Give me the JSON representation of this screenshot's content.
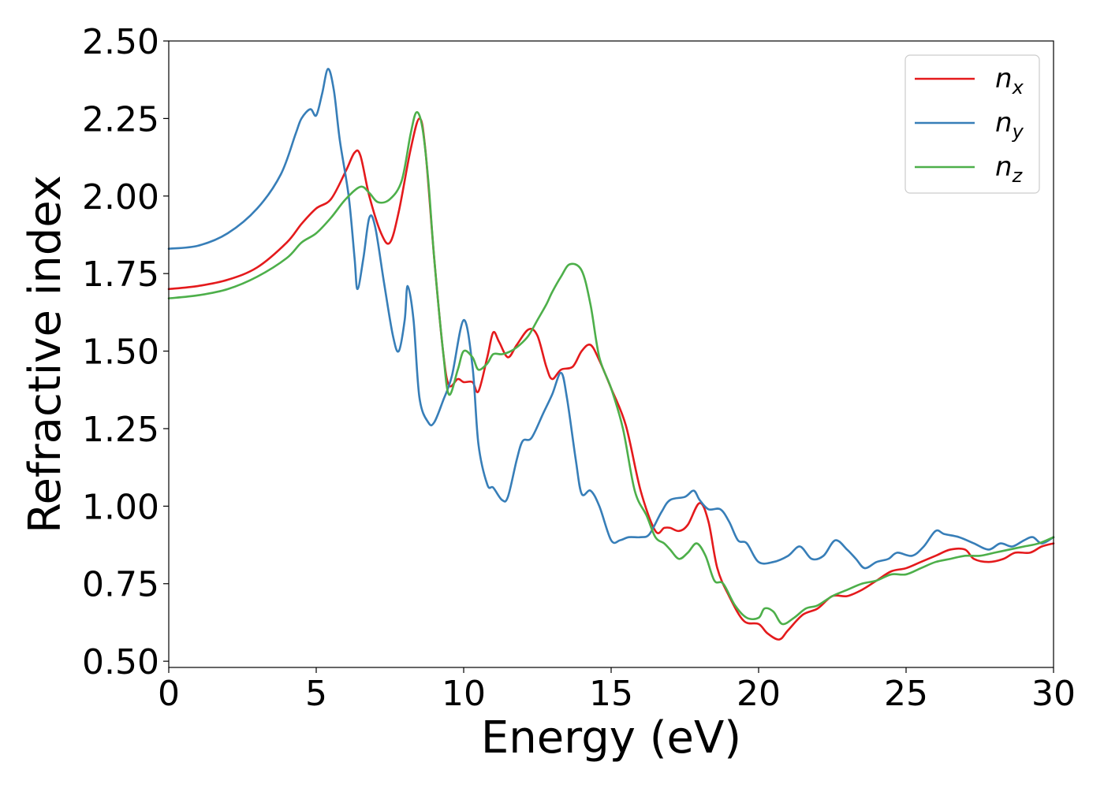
{
  "chart_data": {
    "type": "line",
    "title": "",
    "xlabel": "Energy (eV)",
    "ylabel": "Refractive index",
    "xlim": [
      0,
      30
    ],
    "ylim": [
      0.48,
      2.5
    ],
    "xticks": [
      0,
      5,
      10,
      15,
      20,
      25,
      30
    ],
    "xtick_labels": [
      "0",
      "5",
      "10",
      "15",
      "20",
      "25",
      "30"
    ],
    "yticks": [
      0.5,
      0.75,
      1.0,
      1.25,
      1.5,
      1.75,
      2.0,
      2.25,
      2.5
    ],
    "ytick_labels": [
      "0.50",
      "0.75",
      "1.00",
      "1.25",
      "1.50",
      "1.75",
      "2.00",
      "2.25",
      "2.50"
    ],
    "grid": false,
    "legend_position": "top-right",
    "series": [
      {
        "name": "n",
        "subscript": "x",
        "color": "#e41a1c",
        "points": [
          [
            0,
            1.7
          ],
          [
            1,
            1.71
          ],
          [
            2,
            1.73
          ],
          [
            3,
            1.77
          ],
          [
            4,
            1.85
          ],
          [
            4.5,
            1.91
          ],
          [
            5,
            1.96
          ],
          [
            5.5,
            1.99
          ],
          [
            6,
            2.08
          ],
          [
            6.3,
            2.14
          ],
          [
            6.5,
            2.13
          ],
          [
            6.8,
            2.0
          ],
          [
            7.2,
            1.88
          ],
          [
            7.5,
            1.85
          ],
          [
            7.8,
            1.95
          ],
          [
            8.2,
            2.15
          ],
          [
            8.5,
            2.25
          ],
          [
            8.7,
            2.15
          ],
          [
            9.0,
            1.8
          ],
          [
            9.3,
            1.5
          ],
          [
            9.5,
            1.39
          ],
          [
            9.8,
            1.41
          ],
          [
            10.0,
            1.4
          ],
          [
            10.3,
            1.4
          ],
          [
            10.5,
            1.37
          ],
          [
            10.8,
            1.48
          ],
          [
            11.0,
            1.56
          ],
          [
            11.2,
            1.53
          ],
          [
            11.5,
            1.48
          ],
          [
            11.8,
            1.52
          ],
          [
            12.2,
            1.57
          ],
          [
            12.5,
            1.55
          ],
          [
            12.8,
            1.45
          ],
          [
            13.0,
            1.41
          ],
          [
            13.3,
            1.44
          ],
          [
            13.7,
            1.45
          ],
          [
            14.0,
            1.5
          ],
          [
            14.3,
            1.52
          ],
          [
            14.6,
            1.47
          ],
          [
            15.0,
            1.38
          ],
          [
            15.5,
            1.26
          ],
          [
            16.0,
            1.05
          ],
          [
            16.5,
            0.92
          ],
          [
            16.8,
            0.93
          ],
          [
            17.0,
            0.93
          ],
          [
            17.3,
            0.92
          ],
          [
            17.6,
            0.94
          ],
          [
            18.0,
            1.01
          ],
          [
            18.3,
            0.95
          ],
          [
            18.6,
            0.8
          ],
          [
            19.0,
            0.71
          ],
          [
            19.5,
            0.63
          ],
          [
            20.0,
            0.62
          ],
          [
            20.3,
            0.59
          ],
          [
            20.7,
            0.57
          ],
          [
            21.0,
            0.6
          ],
          [
            21.5,
            0.65
          ],
          [
            22.0,
            0.67
          ],
          [
            22.5,
            0.71
          ],
          [
            23.0,
            0.71
          ],
          [
            23.5,
            0.73
          ],
          [
            24.0,
            0.76
          ],
          [
            24.5,
            0.79
          ],
          [
            25.0,
            0.8
          ],
          [
            25.5,
            0.82
          ],
          [
            26.0,
            0.84
          ],
          [
            26.5,
            0.86
          ],
          [
            27.0,
            0.86
          ],
          [
            27.3,
            0.83
          ],
          [
            27.8,
            0.82
          ],
          [
            28.3,
            0.83
          ],
          [
            28.7,
            0.85
          ],
          [
            29.2,
            0.85
          ],
          [
            29.6,
            0.87
          ],
          [
            30.0,
            0.88
          ]
        ]
      },
      {
        "name": "n",
        "subscript": "y",
        "color": "#377eb8",
        "points": [
          [
            0,
            1.83
          ],
          [
            1,
            1.84
          ],
          [
            2,
            1.88
          ],
          [
            3,
            1.96
          ],
          [
            3.8,
            2.07
          ],
          [
            4.3,
            2.2
          ],
          [
            4.5,
            2.25
          ],
          [
            4.8,
            2.28
          ],
          [
            5.0,
            2.26
          ],
          [
            5.2,
            2.33
          ],
          [
            5.4,
            2.41
          ],
          [
            5.6,
            2.34
          ],
          [
            5.8,
            2.18
          ],
          [
            6.1,
            2.0
          ],
          [
            6.3,
            1.8
          ],
          [
            6.4,
            1.7
          ],
          [
            6.6,
            1.8
          ],
          [
            6.8,
            1.93
          ],
          [
            7.0,
            1.9
          ],
          [
            7.3,
            1.72
          ],
          [
            7.6,
            1.55
          ],
          [
            7.8,
            1.5
          ],
          [
            8.0,
            1.6
          ],
          [
            8.1,
            1.71
          ],
          [
            8.3,
            1.6
          ],
          [
            8.5,
            1.35
          ],
          [
            8.8,
            1.27
          ],
          [
            9.0,
            1.27
          ],
          [
            9.3,
            1.34
          ],
          [
            9.6,
            1.42
          ],
          [
            10.0,
            1.6
          ],
          [
            10.3,
            1.45
          ],
          [
            10.5,
            1.2
          ],
          [
            10.8,
            1.07
          ],
          [
            11.0,
            1.06
          ],
          [
            11.3,
            1.02
          ],
          [
            11.5,
            1.03
          ],
          [
            11.8,
            1.15
          ],
          [
            12.0,
            1.21
          ],
          [
            12.3,
            1.22
          ],
          [
            12.7,
            1.3
          ],
          [
            13.0,
            1.36
          ],
          [
            13.3,
            1.43
          ],
          [
            13.5,
            1.35
          ],
          [
            13.8,
            1.15
          ],
          [
            14.0,
            1.04
          ],
          [
            14.3,
            1.05
          ],
          [
            14.6,
            1.0
          ],
          [
            15.0,
            0.89
          ],
          [
            15.3,
            0.89
          ],
          [
            15.6,
            0.9
          ],
          [
            16.0,
            0.9
          ],
          [
            16.3,
            0.91
          ],
          [
            16.7,
            0.98
          ],
          [
            17.0,
            1.02
          ],
          [
            17.5,
            1.03
          ],
          [
            17.8,
            1.05
          ],
          [
            18.0,
            1.02
          ],
          [
            18.3,
            0.99
          ],
          [
            18.7,
            0.99
          ],
          [
            19.0,
            0.95
          ],
          [
            19.3,
            0.89
          ],
          [
            19.6,
            0.88
          ],
          [
            20.0,
            0.82
          ],
          [
            20.5,
            0.82
          ],
          [
            21.0,
            0.84
          ],
          [
            21.4,
            0.87
          ],
          [
            21.8,
            0.83
          ],
          [
            22.2,
            0.84
          ],
          [
            22.6,
            0.89
          ],
          [
            23.0,
            0.86
          ],
          [
            23.3,
            0.83
          ],
          [
            23.6,
            0.8
          ],
          [
            24.0,
            0.82
          ],
          [
            24.4,
            0.83
          ],
          [
            24.7,
            0.85
          ],
          [
            25.2,
            0.84
          ],
          [
            25.6,
            0.87
          ],
          [
            26.0,
            0.92
          ],
          [
            26.3,
            0.91
          ],
          [
            26.8,
            0.9
          ],
          [
            27.3,
            0.88
          ],
          [
            27.8,
            0.86
          ],
          [
            28.2,
            0.88
          ],
          [
            28.6,
            0.87
          ],
          [
            29.0,
            0.89
          ],
          [
            29.3,
            0.9
          ],
          [
            29.6,
            0.88
          ],
          [
            30.0,
            0.9
          ]
        ]
      },
      {
        "name": "n",
        "subscript": "z",
        "color": "#4daf4a",
        "points": [
          [
            0,
            1.67
          ],
          [
            1,
            1.68
          ],
          [
            2,
            1.7
          ],
          [
            3,
            1.74
          ],
          [
            4,
            1.8
          ],
          [
            4.5,
            1.85
          ],
          [
            5,
            1.88
          ],
          [
            5.5,
            1.93
          ],
          [
            6.0,
            1.99
          ],
          [
            6.5,
            2.03
          ],
          [
            6.8,
            2.01
          ],
          [
            7.1,
            1.98
          ],
          [
            7.5,
            1.99
          ],
          [
            7.9,
            2.05
          ],
          [
            8.2,
            2.2
          ],
          [
            8.4,
            2.27
          ],
          [
            8.6,
            2.22
          ],
          [
            8.8,
            2.05
          ],
          [
            9.0,
            1.8
          ],
          [
            9.3,
            1.5
          ],
          [
            9.5,
            1.36
          ],
          [
            9.8,
            1.44
          ],
          [
            10.0,
            1.5
          ],
          [
            10.3,
            1.48
          ],
          [
            10.5,
            1.44
          ],
          [
            10.8,
            1.46
          ],
          [
            11.0,
            1.49
          ],
          [
            11.3,
            1.49
          ],
          [
            11.6,
            1.5
          ],
          [
            11.9,
            1.52
          ],
          [
            12.2,
            1.55
          ],
          [
            12.5,
            1.6
          ],
          [
            12.8,
            1.65
          ],
          [
            13.0,
            1.69
          ],
          [
            13.3,
            1.74
          ],
          [
            13.6,
            1.78
          ],
          [
            14.0,
            1.76
          ],
          [
            14.3,
            1.65
          ],
          [
            14.6,
            1.48
          ],
          [
            15.0,
            1.38
          ],
          [
            15.4,
            1.25
          ],
          [
            15.8,
            1.05
          ],
          [
            16.2,
            0.97
          ],
          [
            16.5,
            0.9
          ],
          [
            16.8,
            0.88
          ],
          [
            17.0,
            0.86
          ],
          [
            17.3,
            0.83
          ],
          [
            17.6,
            0.85
          ],
          [
            17.9,
            0.88
          ],
          [
            18.2,
            0.84
          ],
          [
            18.5,
            0.76
          ],
          [
            18.8,
            0.75
          ],
          [
            19.2,
            0.68
          ],
          [
            19.6,
            0.64
          ],
          [
            20.0,
            0.64
          ],
          [
            20.2,
            0.67
          ],
          [
            20.5,
            0.66
          ],
          [
            20.8,
            0.62
          ],
          [
            21.2,
            0.64
          ],
          [
            21.6,
            0.67
          ],
          [
            22.0,
            0.68
          ],
          [
            22.5,
            0.71
          ],
          [
            23.0,
            0.73
          ],
          [
            23.5,
            0.75
          ],
          [
            24.0,
            0.76
          ],
          [
            24.5,
            0.78
          ],
          [
            25.0,
            0.78
          ],
          [
            25.5,
            0.8
          ],
          [
            26.0,
            0.82
          ],
          [
            26.5,
            0.83
          ],
          [
            27.0,
            0.84
          ],
          [
            27.5,
            0.84
          ],
          [
            28.0,
            0.85
          ],
          [
            28.5,
            0.86
          ],
          [
            29.0,
            0.87
          ],
          [
            29.5,
            0.88
          ],
          [
            30.0,
            0.9
          ]
        ]
      }
    ]
  }
}
